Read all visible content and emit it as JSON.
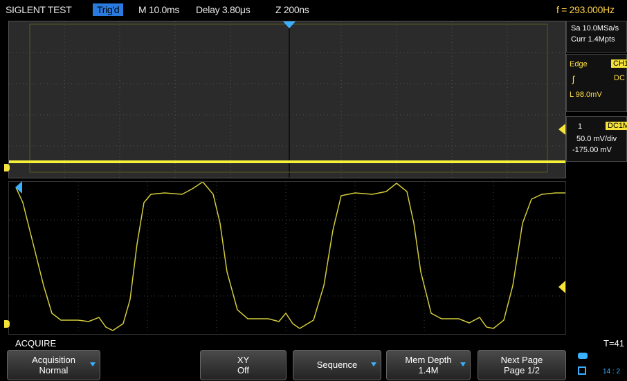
{
  "top_bar": {
    "title": "SIGLENT TEST",
    "trig_status": "Trig'd",
    "timebase": "M 10.0ms",
    "delay": "Delay 3.80μs",
    "zoom": "Z 200ns",
    "frequency": "f = 293.000Hz"
  },
  "acq_panel": {
    "sample_rate": "Sa 10.0MSa/s",
    "memory": "Curr 1.4Mpts"
  },
  "trigger_panel": {
    "type": "Edge",
    "source": "CH1",
    "coupling": "DC",
    "level": "L  98.0mV",
    "slope_icon": "rising-edge-icon"
  },
  "channel_panel": {
    "channel": "1",
    "coupling": "DC1M",
    "scale": "50.0 mV/div",
    "offset": "-175.00 mV"
  },
  "menu": {
    "label": "ACQUIRE",
    "t_readout": "T=41"
  },
  "softkeys": [
    {
      "line1": "Acquisition",
      "line2": "Normal",
      "has_arrow": true
    },
    {
      "line1": "",
      "line2": "",
      "has_arrow": false
    },
    {
      "line1": "XY",
      "line2": "Off",
      "has_arrow": false
    },
    {
      "line1": "Sequence",
      "line2": "",
      "has_arrow": true
    },
    {
      "line1": "Mem Depth",
      "line2": "1.4M",
      "has_arrow": true
    },
    {
      "line1": "Next Page",
      "line2": "Page 1/2",
      "has_arrow": false
    }
  ],
  "status": {
    "time": "14 : 2"
  },
  "colors": {
    "trace": "#e8e24a",
    "trig_badge": "#2a7be0",
    "accent": "#3ab0ff"
  }
}
